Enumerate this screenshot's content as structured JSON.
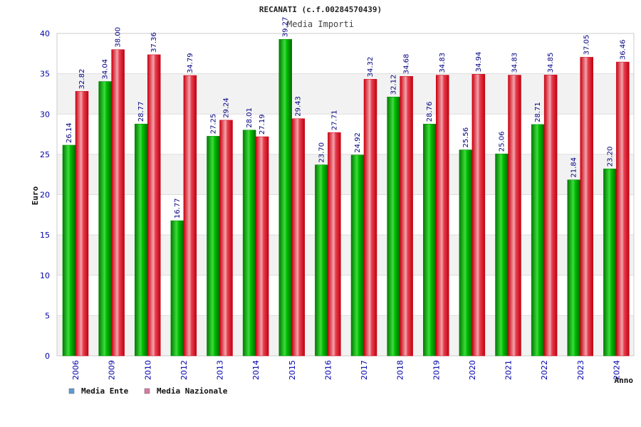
{
  "chart_data": {
    "type": "bar",
    "title": "RECANATI (c.f.00284570439)",
    "subtitle": "Media Importi",
    "xlabel": "Anno",
    "ylabel": "Euro",
    "ylim": [
      0,
      40
    ],
    "yticks": [
      0,
      5,
      10,
      15,
      20,
      25,
      30,
      35,
      40
    ],
    "grid": true,
    "legend_position": "bottom-left",
    "categories": [
      "2006",
      "2009",
      "2010",
      "2012",
      "2013",
      "2014",
      "2015",
      "2016",
      "2017",
      "2018",
      "2019",
      "2020",
      "2021",
      "2022",
      "2023",
      "2024"
    ],
    "series": [
      {
        "name": "Media Ente",
        "color": "#00bb00",
        "legend_color": "#5b9bd5",
        "values": [
          26.14,
          34.04,
          28.77,
          16.77,
          27.25,
          28.01,
          39.27,
          23.7,
          24.92,
          32.12,
          28.76,
          25.56,
          25.06,
          28.71,
          21.84,
          23.2
        ],
        "labels": [
          "26.14",
          "34.04",
          "28.77",
          "16.77",
          "27.25",
          "28.01",
          "39.27",
          "23.70",
          "24.92",
          "32.12",
          "28.76",
          "25.56",
          "25.06",
          "28.71",
          "21.84",
          "23.20"
        ]
      },
      {
        "name": "Media Nazionale",
        "color": "#e8222e",
        "legend_color": "#d77aa0",
        "values": [
          32.82,
          38.0,
          37.36,
          34.79,
          29.24,
          27.19,
          29.43,
          27.71,
          34.32,
          34.68,
          34.83,
          34.94,
          34.83,
          34.85,
          37.05,
          36.46
        ],
        "labels": [
          "32.82",
          "38.00",
          "37.36",
          "34.79",
          "29.24",
          "27.19",
          "29.43",
          "27.71",
          "34.32",
          "34.68",
          "34.83",
          "34.94",
          "34.83",
          "34.85",
          "37.05",
          "36.46"
        ]
      }
    ]
  }
}
